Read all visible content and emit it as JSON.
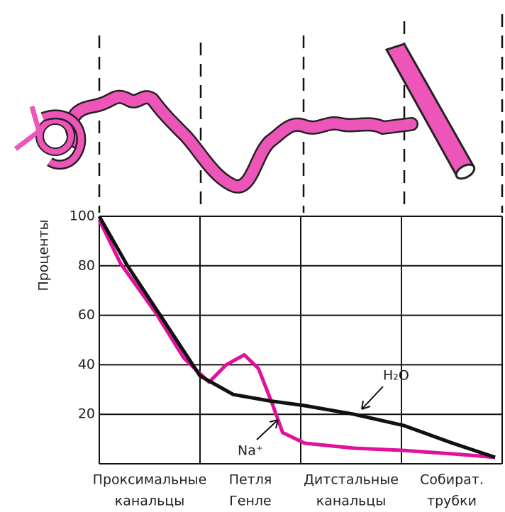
{
  "chart_data": {
    "type": "line",
    "y_label": "Проценты",
    "categories": [
      [
        "Проксимальные",
        "канальцы"
      ],
      [
        "Петля",
        "Генле"
      ],
      [
        "Дитстальные",
        "канальцы"
      ],
      [
        "Собират.",
        "трубки"
      ]
    ],
    "xlim": [
      0,
      4
    ],
    "ylim": [
      0,
      100
    ],
    "yticks": [
      20,
      40,
      60,
      80,
      100
    ],
    "grid": true,
    "series": [
      {
        "name": "H₂O",
        "color": "#111111",
        "x": [
          0,
          0.28,
          0.63,
          1.0,
          1.33,
          1.68,
          2.04,
          2.53,
          3.02,
          3.51,
          3.93
        ],
        "values": [
          100,
          80,
          58.5,
          35.5,
          28,
          25.5,
          23.5,
          20,
          15.5,
          8.3,
          2.6
        ]
      },
      {
        "name": "Na⁺",
        "color": "#e0119a",
        "x": [
          0,
          0.21,
          0.56,
          0.84,
          1.09,
          1.26,
          1.44,
          1.58,
          1.72,
          1.82,
          2.04,
          2.53,
          3.02,
          3.51,
          3.93
        ],
        "values": [
          98.5,
          81,
          61,
          42.7,
          33,
          40,
          44,
          38.5,
          24,
          12.6,
          8.3,
          6.3,
          5.4,
          4,
          2.6
        ]
      }
    ]
  }
}
